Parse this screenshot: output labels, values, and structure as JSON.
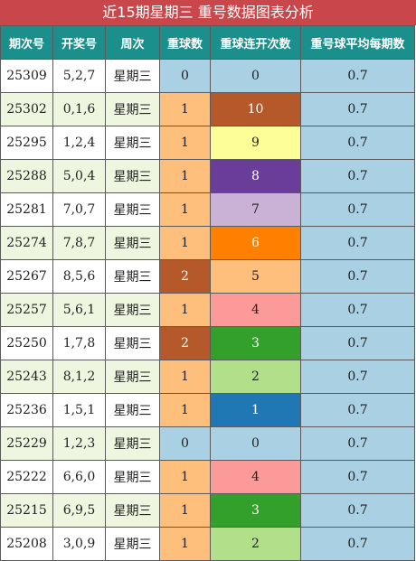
{
  "title": "近15期星期三 重号数据图表分析",
  "headers": [
    "期次号",
    "开奖号",
    "周次",
    "重球数",
    "重球连开次数",
    "重号球平均每期数"
  ],
  "colors": {
    "title_bg": "#c9474a",
    "header_bg": "#1a8f8c",
    "repeat_0": "#a9d0e3",
    "repeat_1": "#fdbf7b",
    "repeat_2": "#b5582a"
  },
  "rows": [
    {
      "issue": "25309",
      "numbers": "5,2,7",
      "weekday": "星期三",
      "repeat": "0",
      "consecutive": "0",
      "average": "0.7",
      "rep_color": "#a9d0e3",
      "rep_text": "#222222",
      "con_color": "#a9d0e3",
      "con_text": "#222222"
    },
    {
      "issue": "25302",
      "numbers": "0,1,6",
      "weekday": "星期三",
      "repeat": "1",
      "consecutive": "10",
      "average": "0.7",
      "rep_color": "#fdbf7b",
      "rep_text": "#222222",
      "con_color": "#b5582a",
      "con_text": "#ffffff"
    },
    {
      "issue": "25295",
      "numbers": "1,2,4",
      "weekday": "星期三",
      "repeat": "1",
      "consecutive": "9",
      "average": "0.7",
      "rep_color": "#fdbf7b",
      "rep_text": "#222222",
      "con_color": "#fefe99",
      "con_text": "#222222"
    },
    {
      "issue": "25288",
      "numbers": "5,0,4",
      "weekday": "星期三",
      "repeat": "1",
      "consecutive": "8",
      "average": "0.7",
      "rep_color": "#fdbf7b",
      "rep_text": "#222222",
      "con_color": "#6b3d9a",
      "con_text": "#ffffff"
    },
    {
      "issue": "25281",
      "numbers": "7,0,7",
      "weekday": "星期三",
      "repeat": "1",
      "consecutive": "7",
      "average": "0.7",
      "rep_color": "#fdbf7b",
      "rep_text": "#222222",
      "con_color": "#cab2d6",
      "con_text": "#222222"
    },
    {
      "issue": "25274",
      "numbers": "7,8,7",
      "weekday": "星期三",
      "repeat": "1",
      "consecutive": "6",
      "average": "0.7",
      "rep_color": "#fdbf7b",
      "rep_text": "#222222",
      "con_color": "#ff7f00",
      "con_text": "#ffffff"
    },
    {
      "issue": "25267",
      "numbers": "8,5,6",
      "weekday": "星期三",
      "repeat": "2",
      "consecutive": "5",
      "average": "0.7",
      "rep_color": "#b5582a",
      "rep_text": "#ffffff",
      "con_color": "#fdbf7b",
      "con_text": "#222222"
    },
    {
      "issue": "25257",
      "numbers": "5,6,1",
      "weekday": "星期三",
      "repeat": "1",
      "consecutive": "4",
      "average": "0.7",
      "rep_color": "#fdbf7b",
      "rep_text": "#222222",
      "con_color": "#fb9a99",
      "con_text": "#222222"
    },
    {
      "issue": "25250",
      "numbers": "1,7,8",
      "weekday": "星期三",
      "repeat": "2",
      "consecutive": "3",
      "average": "0.7",
      "rep_color": "#b5582a",
      "rep_text": "#ffffff",
      "con_color": "#33a02c",
      "con_text": "#ffffff"
    },
    {
      "issue": "25243",
      "numbers": "8,1,2",
      "weekday": "星期三",
      "repeat": "1",
      "consecutive": "2",
      "average": "0.7",
      "rep_color": "#fdbf7b",
      "rep_text": "#222222",
      "con_color": "#b2df8a",
      "con_text": "#222222"
    },
    {
      "issue": "25236",
      "numbers": "1,5,1",
      "weekday": "星期三",
      "repeat": "1",
      "consecutive": "1",
      "average": "0.7",
      "rep_color": "#fdbf7b",
      "rep_text": "#222222",
      "con_color": "#1f78b4",
      "con_text": "#ffffff"
    },
    {
      "issue": "25229",
      "numbers": "1,2,3",
      "weekday": "星期三",
      "repeat": "0",
      "consecutive": "0",
      "average": "0.7",
      "rep_color": "#a9d0e3",
      "rep_text": "#222222",
      "con_color": "#a9d0e3",
      "con_text": "#222222"
    },
    {
      "issue": "25222",
      "numbers": "6,6,0",
      "weekday": "星期三",
      "repeat": "1",
      "consecutive": "4",
      "average": "0.7",
      "rep_color": "#fdbf7b",
      "rep_text": "#222222",
      "con_color": "#fb9a99",
      "con_text": "#222222"
    },
    {
      "issue": "25215",
      "numbers": "6,9,5",
      "weekday": "星期三",
      "repeat": "1",
      "consecutive": "3",
      "average": "0.7",
      "rep_color": "#fdbf7b",
      "rep_text": "#222222",
      "con_color": "#33a02c",
      "con_text": "#ffffff"
    },
    {
      "issue": "25208",
      "numbers": "3,0,9",
      "weekday": "星期三",
      "repeat": "1",
      "consecutive": "2",
      "average": "0.7",
      "rep_color": "#fdbf7b",
      "rep_text": "#222222",
      "con_color": "#b2df8a",
      "con_text": "#222222"
    }
  ]
}
